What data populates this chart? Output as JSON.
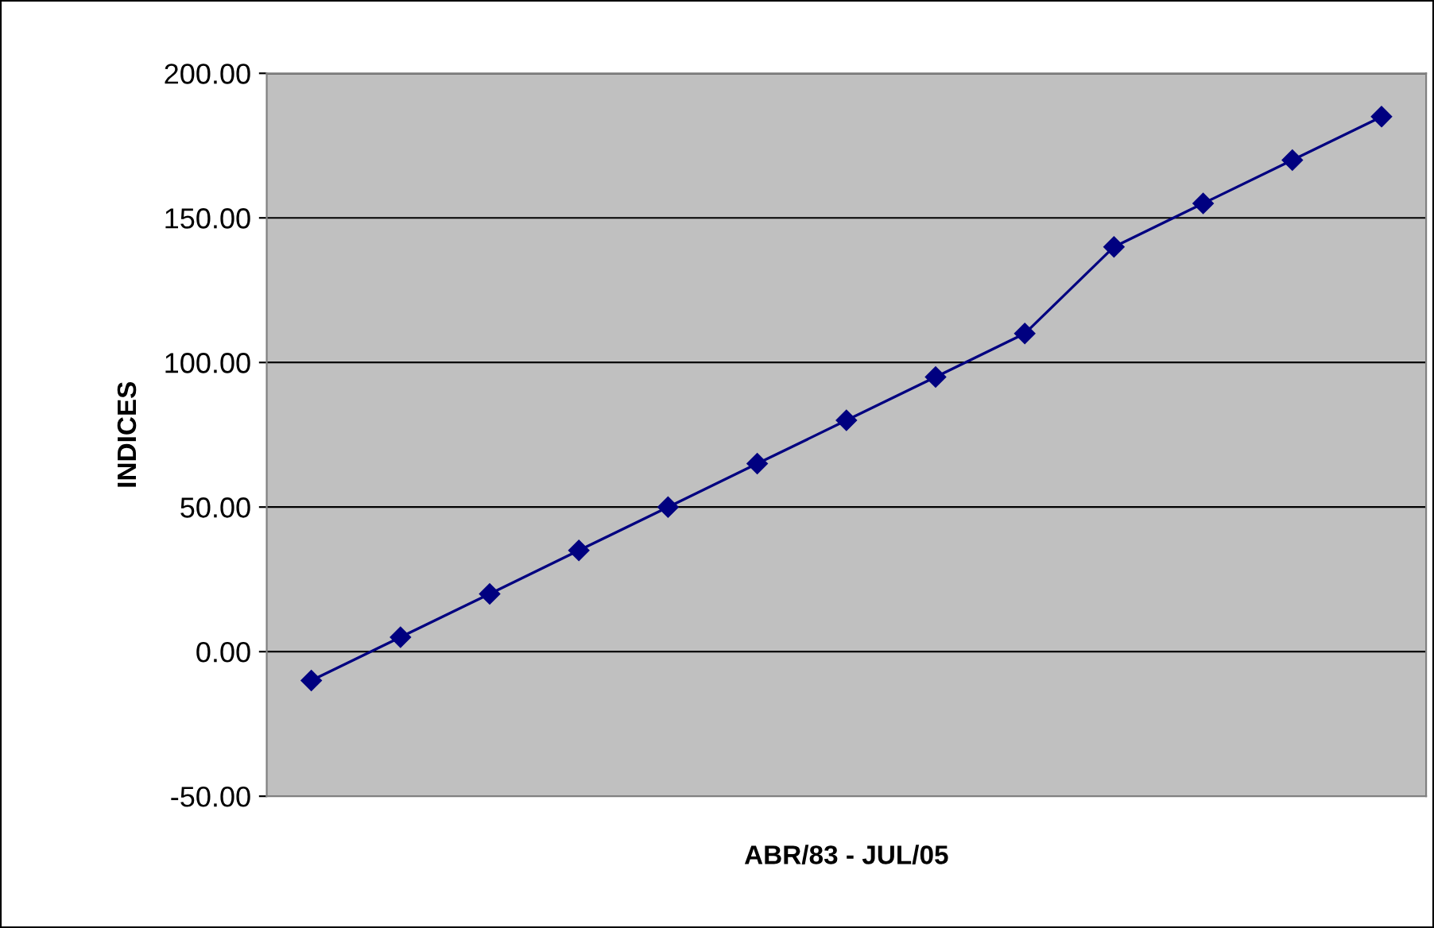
{
  "chart_data": {
    "type": "line",
    "xlabel": "ABR/83 - JUL/05",
    "ylabel": "INDICES",
    "categories": [
      null,
      null,
      null,
      null,
      null,
      null,
      null,
      null,
      null,
      null,
      null,
      null,
      null
    ],
    "series": [
      {
        "color": "#000080",
        "values": [
          -10,
          5,
          20,
          35,
          50,
          65,
          80,
          95,
          110,
          140,
          155,
          170,
          185
        ]
      }
    ],
    "ylim": [
      -50,
      200
    ],
    "yticks": [
      {
        "value": -50,
        "label": "-50.00"
      },
      {
        "value": 0,
        "label": "0.00"
      },
      {
        "value": 50,
        "label": "50.00"
      },
      {
        "value": 100,
        "label": "100.00"
      },
      {
        "value": 150,
        "label": "150.00"
      },
      {
        "value": 200,
        "label": "200.00"
      }
    ],
    "grid": "y",
    "marker": "diamond",
    "line_style": "solid",
    "tick_labels": "y"
  }
}
